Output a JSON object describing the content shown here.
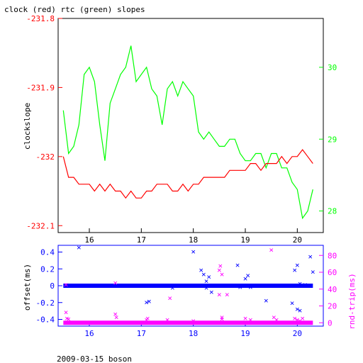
{
  "page": {
    "title": "clock (red) rtc (green) slopes",
    "footer": "2009-03-15 boson"
  },
  "colors": {
    "clock": "#ff0000",
    "rtc": "#00ff00",
    "offset": "#0000ff",
    "roundtrip": "#ff00ff",
    "axis": "#000000"
  },
  "chart_data": [
    {
      "type": "line",
      "title": "clock (red) rtc (green) slopes",
      "xlabel": "",
      "ylabel": "clockslope",
      "xlim": [
        15.4,
        20.5
      ],
      "ylim": [
        -232.11,
        -231.8
      ],
      "y2lim": [
        27.7,
        30.68
      ],
      "x_ticks": [
        16,
        17,
        18,
        19,
        20
      ],
      "x_tick_labels": [
        "16",
        "17",
        "18",
        "19",
        "20"
      ],
      "y_ticks": [
        -231.8,
        -231.9,
        -232,
        -232.1
      ],
      "y_tick_labels": [
        "-231.8",
        "-231.9",
        "-232",
        "-232.1"
      ],
      "y2_ticks": [
        30,
        29,
        28
      ],
      "y2_tick_labels": [
        "30",
        "29",
        "28"
      ],
      "series": [
        {
          "color": "clock",
          "axis": "left",
          "points": [
            [
              15.5,
              -232.0
            ],
            [
              15.6,
              -232.03
            ],
            [
              15.7,
              -232.03
            ],
            [
              15.8,
              -232.04
            ],
            [
              15.9,
              -232.04
            ],
            [
              16.0,
              -232.04
            ],
            [
              16.1,
              -232.05
            ],
            [
              16.2,
              -232.04
            ],
            [
              16.3,
              -232.05
            ],
            [
              16.4,
              -232.04
            ],
            [
              16.5,
              -232.05
            ],
            [
              16.6,
              -232.05
            ],
            [
              16.7,
              -232.06
            ],
            [
              16.8,
              -232.05
            ],
            [
              16.9,
              -232.06
            ],
            [
              17.0,
              -232.06
            ],
            [
              17.1,
              -232.05
            ],
            [
              17.2,
              -232.05
            ],
            [
              17.3,
              -232.04
            ],
            [
              17.4,
              -232.04
            ],
            [
              17.5,
              -232.04
            ],
            [
              17.6,
              -232.05
            ],
            [
              17.7,
              -232.05
            ],
            [
              17.8,
              -232.04
            ],
            [
              17.9,
              -232.05
            ],
            [
              18.0,
              -232.04
            ],
            [
              18.1,
              -232.04
            ],
            [
              18.2,
              -232.03
            ],
            [
              18.3,
              -232.03
            ],
            [
              18.4,
              -232.03
            ],
            [
              18.5,
              -232.03
            ],
            [
              18.6,
              -232.03
            ],
            [
              18.7,
              -232.02
            ],
            [
              18.8,
              -232.02
            ],
            [
              18.9,
              -232.02
            ],
            [
              19.0,
              -232.02
            ],
            [
              19.1,
              -232.01
            ],
            [
              19.2,
              -232.01
            ],
            [
              19.3,
              -232.02
            ],
            [
              19.4,
              -232.01
            ],
            [
              19.5,
              -232.01
            ],
            [
              19.6,
              -232.01
            ],
            [
              19.7,
              -232.0
            ],
            [
              19.8,
              -232.01
            ],
            [
              19.9,
              -232.0
            ],
            [
              20.0,
              -232.0
            ],
            [
              20.1,
              -231.99
            ],
            [
              20.2,
              -232.0
            ],
            [
              20.3,
              -232.01
            ]
          ]
        },
        {
          "color": "rtc",
          "axis": "right",
          "points": [
            [
              15.5,
              29.4
            ],
            [
              15.6,
              28.8
            ],
            [
              15.7,
              28.9
            ],
            [
              15.8,
              29.2
            ],
            [
              15.9,
              29.9
            ],
            [
              16.0,
              30.0
            ],
            [
              16.1,
              29.8
            ],
            [
              16.2,
              29.2
            ],
            [
              16.3,
              28.7
            ],
            [
              16.4,
              29.5
            ],
            [
              16.5,
              29.7
            ],
            [
              16.6,
              29.9
            ],
            [
              16.7,
              30.0
            ],
            [
              16.8,
              30.3
            ],
            [
              16.9,
              29.8
            ],
            [
              17.0,
              29.9
            ],
            [
              17.1,
              30.0
            ],
            [
              17.2,
              29.7
            ],
            [
              17.3,
              29.6
            ],
            [
              17.4,
              29.2
            ],
            [
              17.5,
              29.7
            ],
            [
              17.6,
              29.8
            ],
            [
              17.7,
              29.6
            ],
            [
              17.8,
              29.8
            ],
            [
              17.9,
              29.7
            ],
            [
              18.0,
              29.6
            ],
            [
              18.1,
              29.1
            ],
            [
              18.2,
              29.0
            ],
            [
              18.3,
              29.1
            ],
            [
              18.4,
              29.0
            ],
            [
              18.5,
              28.9
            ],
            [
              18.6,
              28.9
            ],
            [
              18.7,
              29.0
            ],
            [
              18.8,
              29.0
            ],
            [
              18.9,
              28.8
            ],
            [
              19.0,
              28.7
            ],
            [
              19.1,
              28.7
            ],
            [
              19.2,
              28.8
            ],
            [
              19.3,
              28.8
            ],
            [
              19.4,
              28.6
            ],
            [
              19.5,
              28.8
            ],
            [
              19.6,
              28.8
            ],
            [
              19.7,
              28.6
            ],
            [
              19.8,
              28.6
            ],
            [
              19.9,
              28.4
            ],
            [
              20.0,
              28.3
            ],
            [
              20.1,
              27.9
            ],
            [
              20.2,
              28.0
            ],
            [
              20.3,
              28.3
            ]
          ]
        }
      ]
    },
    {
      "type": "scatter",
      "xlabel": "",
      "ylabel": "offset(ms)",
      "y2label": "rnd-trip(ms)",
      "xlim": [
        15.4,
        20.5
      ],
      "ylim": [
        -0.48,
        0.48
      ],
      "y2lim": [
        -4,
        92
      ],
      "x_ticks": [
        16,
        17,
        18,
        19,
        20
      ],
      "x_tick_labels": [
        "16",
        "17",
        "18",
        "19",
        "20"
      ],
      "y_ticks": [
        0.4,
        0.2,
        0,
        -0.2,
        -0.4
      ],
      "y_tick_labels": [
        "0.4",
        "0.2",
        "0",
        "-0.2",
        "-0.4"
      ],
      "y2_ticks": [
        80,
        60,
        40,
        20,
        0
      ],
      "y2_tick_labels": [
        "80",
        "60",
        "40",
        "20",
        "0"
      ],
      "offset_baseline": 0,
      "roundtrip_baseline": 0,
      "series": [
        {
          "color": "offset",
          "axis": "left",
          "points": [
            [
              15.8,
              0.45
            ],
            [
              18.0,
              0.4
            ],
            [
              18.15,
              0.18
            ],
            [
              18.2,
              0.13
            ],
            [
              18.25,
              0.05
            ],
            [
              18.3,
              0.1
            ],
            [
              18.85,
              0.24
            ],
            [
              19.0,
              0.08
            ],
            [
              19.05,
              0.12
            ],
            [
              19.95,
              0.18
            ],
            [
              20.0,
              0.24
            ],
            [
              20.05,
              0.02
            ],
            [
              20.15,
              0.01
            ],
            [
              20.25,
              0.34
            ],
            [
              20.3,
              0.16
            ],
            [
              17.1,
              -0.2
            ],
            [
              17.15,
              -0.19
            ],
            [
              17.6,
              -0.03
            ],
            [
              18.25,
              -0.03
            ],
            [
              18.35,
              -0.08
            ],
            [
              18.9,
              -0.02
            ],
            [
              19.1,
              -0.02
            ],
            [
              19.4,
              -0.18
            ],
            [
              19.9,
              -0.21
            ],
            [
              20.0,
              -0.28
            ],
            [
              20.05,
              -0.3
            ]
          ]
        },
        {
          "color": "roundtrip",
          "axis": "right",
          "points": [
            [
              15.55,
              12
            ],
            [
              15.57,
              5
            ],
            [
              15.6,
              4
            ],
            [
              15.55,
              45
            ],
            [
              16.5,
              47
            ],
            [
              16.5,
              10
            ],
            [
              16.52,
              6
            ],
            [
              17.1,
              3
            ],
            [
              17.12,
              5
            ],
            [
              17.5,
              3
            ],
            [
              17.55,
              29
            ],
            [
              18.0,
              2
            ],
            [
              18.5,
              62
            ],
            [
              18.52,
              67
            ],
            [
              18.55,
              57
            ],
            [
              18.5,
              33
            ],
            [
              18.55,
              6
            ],
            [
              18.55,
              4
            ],
            [
              18.65,
              33
            ],
            [
              19.0,
              5
            ],
            [
              19.1,
              3
            ],
            [
              19.5,
              86
            ],
            [
              19.55,
              6
            ],
            [
              19.6,
              3
            ],
            [
              19.95,
              5
            ],
            [
              20.0,
              3
            ],
            [
              20.05,
              2
            ],
            [
              20.1,
              5
            ]
          ]
        }
      ]
    }
  ]
}
